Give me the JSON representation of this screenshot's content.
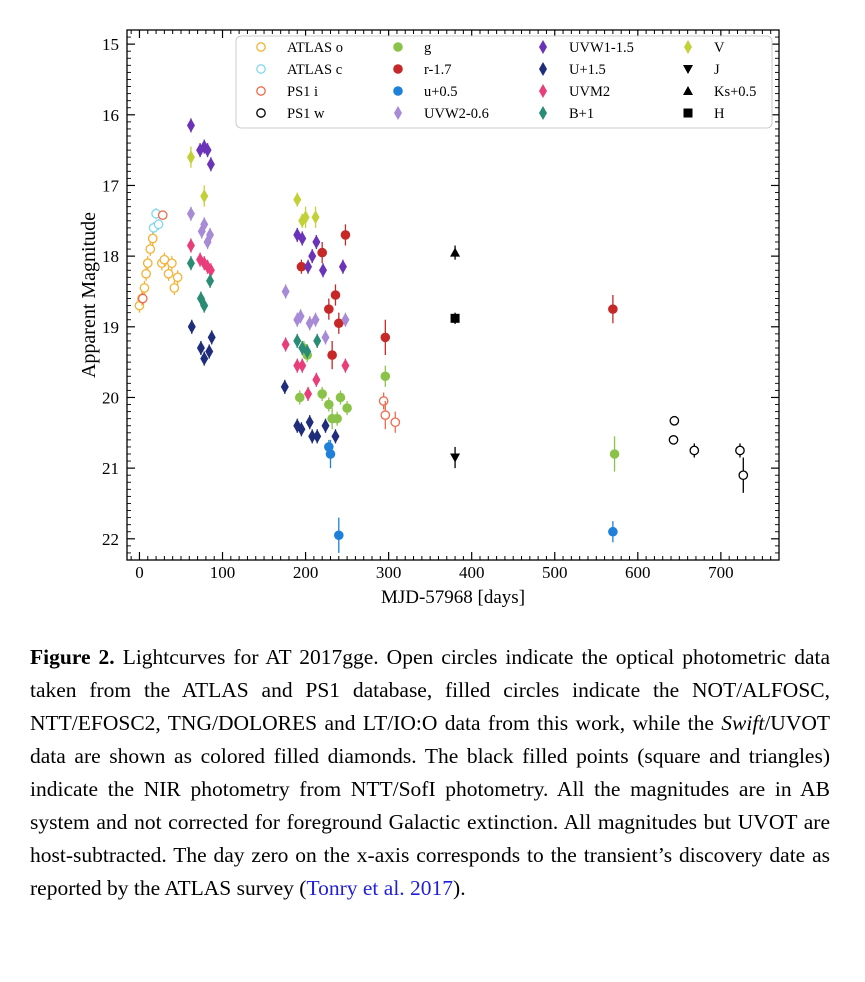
{
  "caption": {
    "label": "Figure 2.",
    "text_part1": "Lightcurves for AT 2017gge. Open circles indicate the optical photometric data taken from the ATLAS and PS1 database, filled circles indicate the NOT/ALFOSC, NTT/EFOSC2, TNG/DOLORES and LT/IO:O data from this work, while the ",
    "italic": "Swift",
    "text_part2": "/UVOT data are shown as colored filled diamonds. The black filled points (square and triangles) indicate the NIR photometry from NTT/SofI photometry. All the magnitudes are in AB system and not corrected for foreground Galactic extinction. All magnitudes but UVOT are host-subtracted. The day zero on the x-axis corresponds to the transient’s discovery date as reported by the ATLAS survey (",
    "link": "Tonry et al. 2017",
    "text_end": ")."
  },
  "chart_data": {
    "type": "scatter",
    "xlabel": "MJD-57968 [days]",
    "ylabel": "Apparent Magnitude",
    "xlim": [
      -15,
      770
    ],
    "ylim": [
      22.3,
      14.8
    ],
    "y_inverted": true,
    "xticks": [
      0,
      100,
      200,
      300,
      400,
      500,
      600,
      700
    ],
    "yticks": [
      15,
      16,
      17,
      18,
      19,
      20,
      21,
      22
    ],
    "legend_position": "top-right",
    "legend_columns": 4,
    "series": [
      {
        "name": "ATLAS o",
        "color": "#f2b233",
        "marker": "open-circle",
        "points": [
          [
            0,
            18.7,
            0.1
          ],
          [
            3,
            18.6,
            0.1
          ],
          [
            6,
            18.45,
            0.1
          ],
          [
            8,
            18.25,
            0.1
          ],
          [
            10,
            18.1,
            0.1
          ],
          [
            13,
            17.9,
            0.1
          ],
          [
            16,
            17.75,
            0.1
          ],
          [
            27,
            18.1,
            0.1
          ],
          [
            30,
            18.05,
            0.1
          ],
          [
            35,
            18.25,
            0.1
          ],
          [
            39,
            18.1,
            0.1
          ],
          [
            42,
            18.45,
            0.1
          ],
          [
            46,
            18.3,
            0.1
          ]
        ]
      },
      {
        "name": "ATLAS c",
        "color": "#84d8ee",
        "marker": "open-circle",
        "points": [
          [
            17,
            17.6,
            0.08
          ],
          [
            20,
            17.4,
            0.08
          ],
          [
            23,
            17.55,
            0.08
          ]
        ]
      },
      {
        "name": "PS1 i",
        "color": "#ef6a4c",
        "marker": "open-circle",
        "points": [
          [
            4,
            18.6,
            0.08
          ],
          [
            28,
            17.42,
            0.05
          ],
          [
            294,
            20.05,
            0.12
          ],
          [
            296,
            20.25,
            0.2
          ],
          [
            308,
            20.35,
            0.15
          ]
        ]
      },
      {
        "name": "PS1 w",
        "color": "#000000",
        "marker": "open-circle",
        "points": [
          [
            644,
            20.33,
            0.05
          ],
          [
            643,
            20.6,
            0.06
          ],
          [
            668,
            20.75,
            0.1
          ],
          [
            723,
            20.75,
            0.1
          ],
          [
            727,
            21.1,
            0.25
          ]
        ]
      },
      {
        "name": "g",
        "color": "#8bc34a",
        "marker": "filled-circle",
        "points": [
          [
            193,
            20.0,
            0.1
          ],
          [
            198,
            19.3,
            0.1
          ],
          [
            202,
            19.4,
            0.1
          ],
          [
            220,
            19.95,
            0.1
          ],
          [
            228,
            20.1,
            0.1
          ],
          [
            232,
            20.3,
            0.15
          ],
          [
            238,
            20.3,
            0.1
          ],
          [
            242,
            20.0,
            0.1
          ],
          [
            250,
            20.15,
            0.1
          ],
          [
            296,
            19.7,
            0.15
          ],
          [
            572,
            20.8,
            0.25
          ]
        ]
      },
      {
        "name": "r-1.7",
        "color": "#c62828",
        "marker": "filled-circle",
        "points": [
          [
            195,
            18.15,
            0.1
          ],
          [
            220,
            17.95,
            0.15
          ],
          [
            228,
            18.75,
            0.15
          ],
          [
            232,
            19.4,
            0.2
          ],
          [
            236,
            18.55,
            0.15
          ],
          [
            240,
            18.95,
            0.15
          ],
          [
            248,
            17.7,
            0.15
          ],
          [
            296,
            19.15,
            0.25
          ],
          [
            570,
            18.75,
            0.2
          ]
        ]
      },
      {
        "name": "u+0.5",
        "color": "#1e80d8",
        "marker": "filled-circle",
        "points": [
          [
            228,
            20.7,
            0.1
          ],
          [
            230,
            20.8,
            0.2
          ],
          [
            240,
            21.95,
            0.25
          ],
          [
            570,
            21.9,
            0.15
          ]
        ]
      },
      {
        "name": "UVW2-0.6",
        "color": "#a78bd6",
        "marker": "diamond",
        "points": [
          [
            62,
            17.4,
            0.1
          ],
          [
            75,
            17.65,
            0.1
          ],
          [
            78,
            17.55,
            0.1
          ],
          [
            82,
            17.8,
            0.1
          ],
          [
            85,
            17.7,
            0.1
          ],
          [
            176,
            18.5,
            0.1
          ],
          [
            190,
            18.9,
            0.1
          ],
          [
            194,
            18.85,
            0.1
          ],
          [
            205,
            18.95,
            0.1
          ],
          [
            212,
            18.9,
            0.1
          ],
          [
            224,
            19.15,
            0.1
          ],
          [
            248,
            18.9,
            0.1
          ]
        ]
      },
      {
        "name": "UVW1-1.5",
        "color": "#6a33b8",
        "marker": "diamond",
        "points": [
          [
            62,
            16.15,
            0.1
          ],
          [
            73,
            16.5,
            0.1
          ],
          [
            78,
            16.45,
            0.1
          ],
          [
            82,
            16.5,
            0.1
          ],
          [
            86,
            16.7,
            0.1
          ],
          [
            190,
            17.7,
            0.1
          ],
          [
            196,
            17.75,
            0.1
          ],
          [
            203,
            18.15,
            0.1
          ],
          [
            208,
            18.0,
            0.1
          ],
          [
            213,
            17.8,
            0.1
          ],
          [
            221,
            18.2,
            0.1
          ],
          [
            245,
            18.15,
            0.1
          ]
        ]
      },
      {
        "name": "U+1.5",
        "color": "#1f2d7a",
        "marker": "diamond",
        "points": [
          [
            63,
            19.0,
            0.1
          ],
          [
            74,
            19.3,
            0.1
          ],
          [
            78,
            19.45,
            0.1
          ],
          [
            84,
            19.35,
            0.1
          ],
          [
            87,
            19.15,
            0.1
          ],
          [
            175,
            19.85,
            0.1
          ],
          [
            190,
            20.4,
            0.1
          ],
          [
            195,
            20.45,
            0.1
          ],
          [
            205,
            20.35,
            0.1
          ],
          [
            208,
            20.55,
            0.1
          ],
          [
            214,
            20.55,
            0.1
          ],
          [
            224,
            20.4,
            0.1
          ],
          [
            236,
            20.55,
            0.1
          ]
        ]
      },
      {
        "name": "UVM2",
        "color": "#e83f7a",
        "marker": "diamond",
        "points": [
          [
            62,
            17.85,
            0.1
          ],
          [
            73,
            18.05,
            0.1
          ],
          [
            78,
            18.1,
            0.1
          ],
          [
            82,
            18.15,
            0.1
          ],
          [
            86,
            18.2,
            0.1
          ],
          [
            176,
            19.25,
            0.1
          ],
          [
            190,
            19.55,
            0.1
          ],
          [
            196,
            19.55,
            0.1
          ],
          [
            203,
            19.95,
            0.1
          ],
          [
            213,
            19.75,
            0.1
          ],
          [
            248,
            19.55,
            0.1
          ]
        ]
      },
      {
        "name": "B+1",
        "color": "#2a8c74",
        "marker": "diamond",
        "points": [
          [
            62,
            18.1,
            0.1
          ],
          [
            74,
            18.6,
            0.1
          ],
          [
            78,
            18.7,
            0.1
          ],
          [
            85,
            18.35,
            0.1
          ],
          [
            190,
            19.2,
            0.1
          ],
          [
            196,
            19.3,
            0.1
          ],
          [
            202,
            19.35,
            0.1
          ],
          [
            214,
            19.2,
            0.1
          ]
        ]
      },
      {
        "name": "V",
        "color": "#c3d138",
        "marker": "diamond",
        "points": [
          [
            62,
            16.6,
            0.15
          ],
          [
            78,
            17.15,
            0.15
          ],
          [
            190,
            17.2,
            0.1
          ],
          [
            196,
            17.5,
            0.1
          ],
          [
            200,
            17.45,
            0.15
          ],
          [
            212,
            17.45,
            0.15
          ]
        ]
      },
      {
        "name": "J",
        "color": "#000000",
        "marker": "triangle-down",
        "points": [
          [
            380,
            20.85,
            0.15
          ]
        ]
      },
      {
        "name": "Ks+0.5",
        "color": "#000000",
        "marker": "triangle-up",
        "points": [
          [
            380,
            17.95,
            0.1
          ]
        ]
      },
      {
        "name": "H",
        "color": "#000000",
        "marker": "square",
        "points": [
          [
            380,
            18.88,
            0.08
          ]
        ]
      }
    ]
  }
}
